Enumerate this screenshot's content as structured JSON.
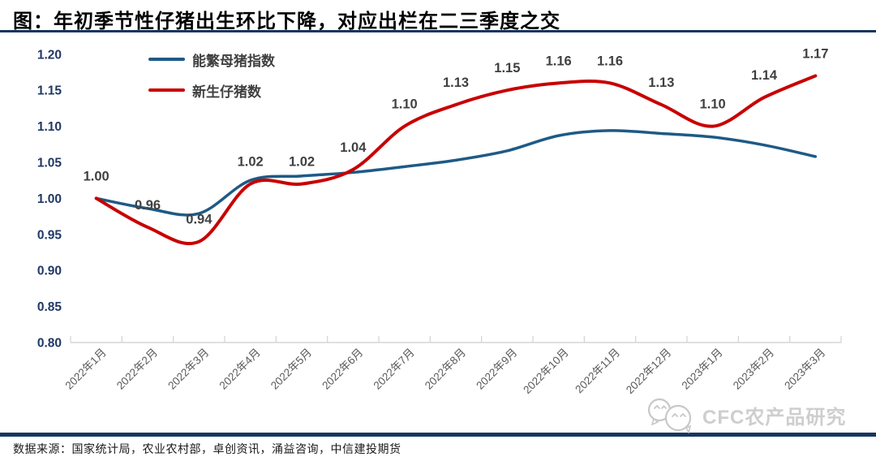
{
  "page": {
    "title": "图：年初季节性仔猪出生环比下降，对应出栏在二三季度之交",
    "source_note": "数据来源：国家统计局，农业农村部，卓创资讯，涌益咨询，中信建投期货",
    "watermark_text": "CFC农产品研究",
    "accent_navy": "#17365D"
  },
  "chart_data": {
    "type": "line",
    "title": "图：年初季节性仔猪出生环比下降，对应出栏在二三季度之交",
    "categories": [
      "2022年1月",
      "2022年2月",
      "2022年3月",
      "2022年4月",
      "2022年5月",
      "2022年6月",
      "2022年7月",
      "2022年8月",
      "2022年9月",
      "2022年10月",
      "2022年11月",
      "2022年12月",
      "2023年1月",
      "2023年2月",
      "2023年3月"
    ],
    "series": [
      {
        "name": "能繁母猪指数",
        "color": "#1E5A86",
        "values": [
          1.0,
          0.986,
          0.979,
          1.025,
          1.031,
          1.036,
          1.044,
          1.053,
          1.066,
          1.087,
          1.094,
          1.09,
          1.085,
          1.074,
          1.058
        ],
        "labeled": false
      },
      {
        "name": "新生仔猪数",
        "color": "#C80000",
        "values": [
          1.0,
          0.96,
          0.94,
          1.02,
          1.02,
          1.04,
          1.1,
          1.13,
          1.15,
          1.16,
          1.16,
          1.13,
          1.1,
          1.14,
          1.17
        ],
        "labeled": true,
        "data_labels": [
          "1.00",
          "0.96",
          "0.94",
          "1.02",
          "1.02",
          "1.04",
          "1.10",
          "1.13",
          "1.15",
          "1.16",
          "1.16",
          "1.13",
          "1.10",
          "1.14",
          "1.17"
        ]
      }
    ],
    "ylim": [
      0.8,
      1.2
    ],
    "ytick_labels": [
      "1.20",
      "1.15",
      "1.10",
      "1.05",
      "1.00",
      "0.95",
      "0.90",
      "0.85",
      "0.80"
    ],
    "grid": false,
    "legend_position": "top-left-inside",
    "colors": {
      "ytick": "#1F3864",
      "xtick": "#595959",
      "data_label": "#404040",
      "axis": "#D6D6D6"
    }
  }
}
